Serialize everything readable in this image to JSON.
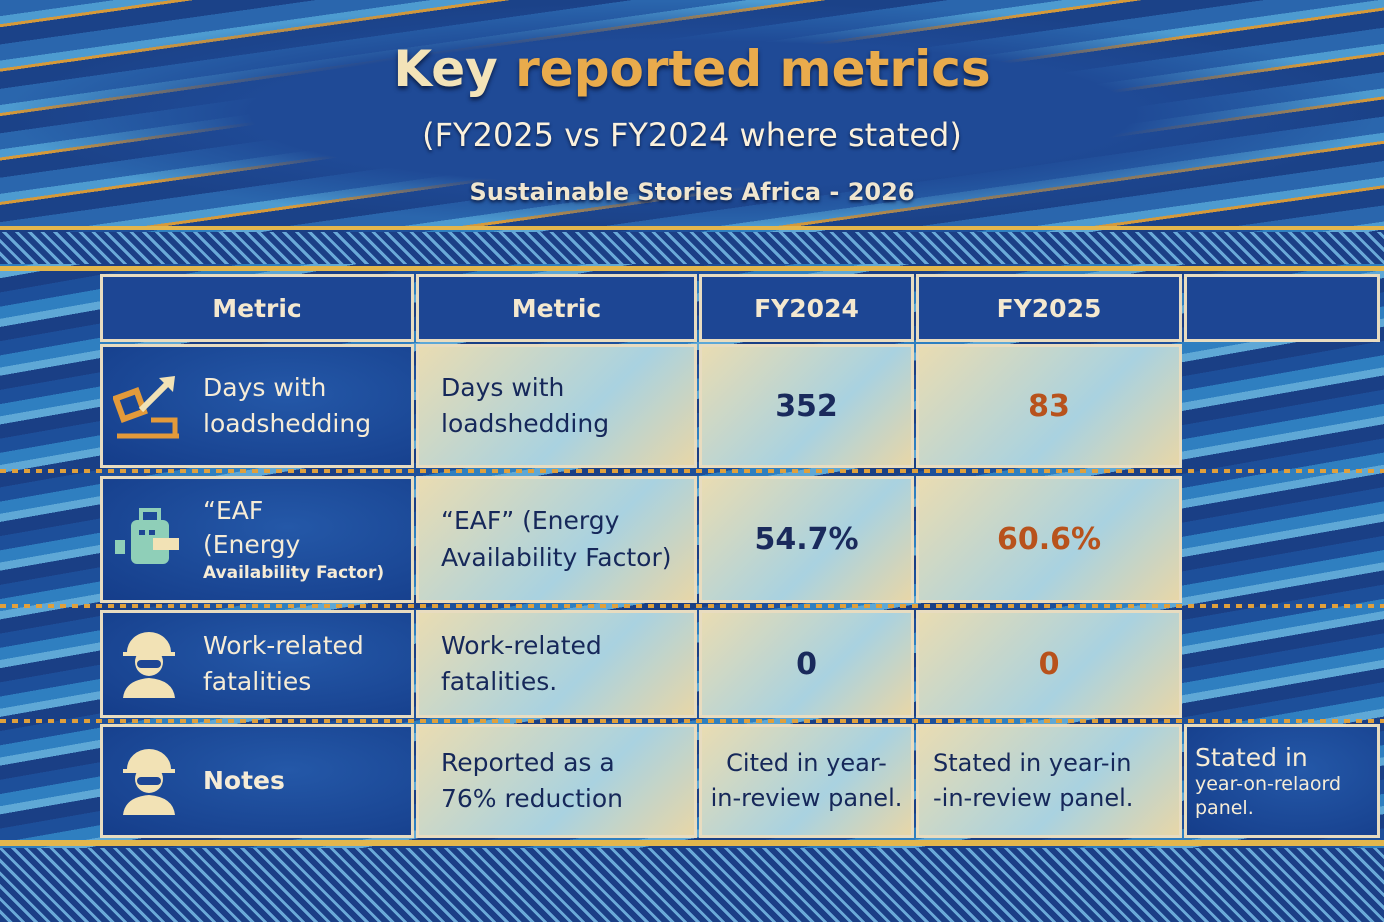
{
  "header": {
    "title_part1": "Key",
    "title_part2": "reported metrics",
    "subtitle": "(FY2025 vs FY2024 where stated)",
    "credit": "Sustainable Stories Africa - 2026"
  },
  "table": {
    "columns": [
      "Metric",
      "Metric",
      "FY2024",
      "FY2025"
    ],
    "rows": [
      {
        "icon": "chart-arrow-icon",
        "label_lines": [
          "Days with",
          "loadshedding"
        ],
        "metric": [
          "Days with",
          "loadshedding"
        ],
        "fy2024": "352",
        "fy2025": "83"
      },
      {
        "icon": "energy-plant-icon",
        "label_lines": [
          "“EAF",
          "(Energy",
          "Availability Factor)"
        ],
        "metric": [
          "“EAF” (Energy",
          "Availability Factor)"
        ],
        "fy2024": "54.7%",
        "fy2025": "60.6%"
      },
      {
        "icon": "worker-helmet-icon",
        "label_lines": [
          "Work-related",
          "fatalities"
        ],
        "metric": [
          "Work-related",
          "fatalities."
        ],
        "fy2024": "0",
        "fy2025": "0"
      },
      {
        "icon": "worker-helmet-icon",
        "label_lines": [
          "Notes"
        ],
        "metric": [
          "Reported as a",
          "76% reduction"
        ],
        "fy2024": [
          "Cited in year-",
          "in-review panel."
        ],
        "fy2025": [
          "Stated in year-in",
          "-in-review panel."
        ],
        "extra": [
          "Stated in",
          "year-on-relaord",
          "panel."
        ]
      }
    ]
  },
  "colors": {
    "navy": "#1a2a5c",
    "rust": "#b8521c",
    "gold": "#e2b64d",
    "blue": "#1d4694"
  }
}
